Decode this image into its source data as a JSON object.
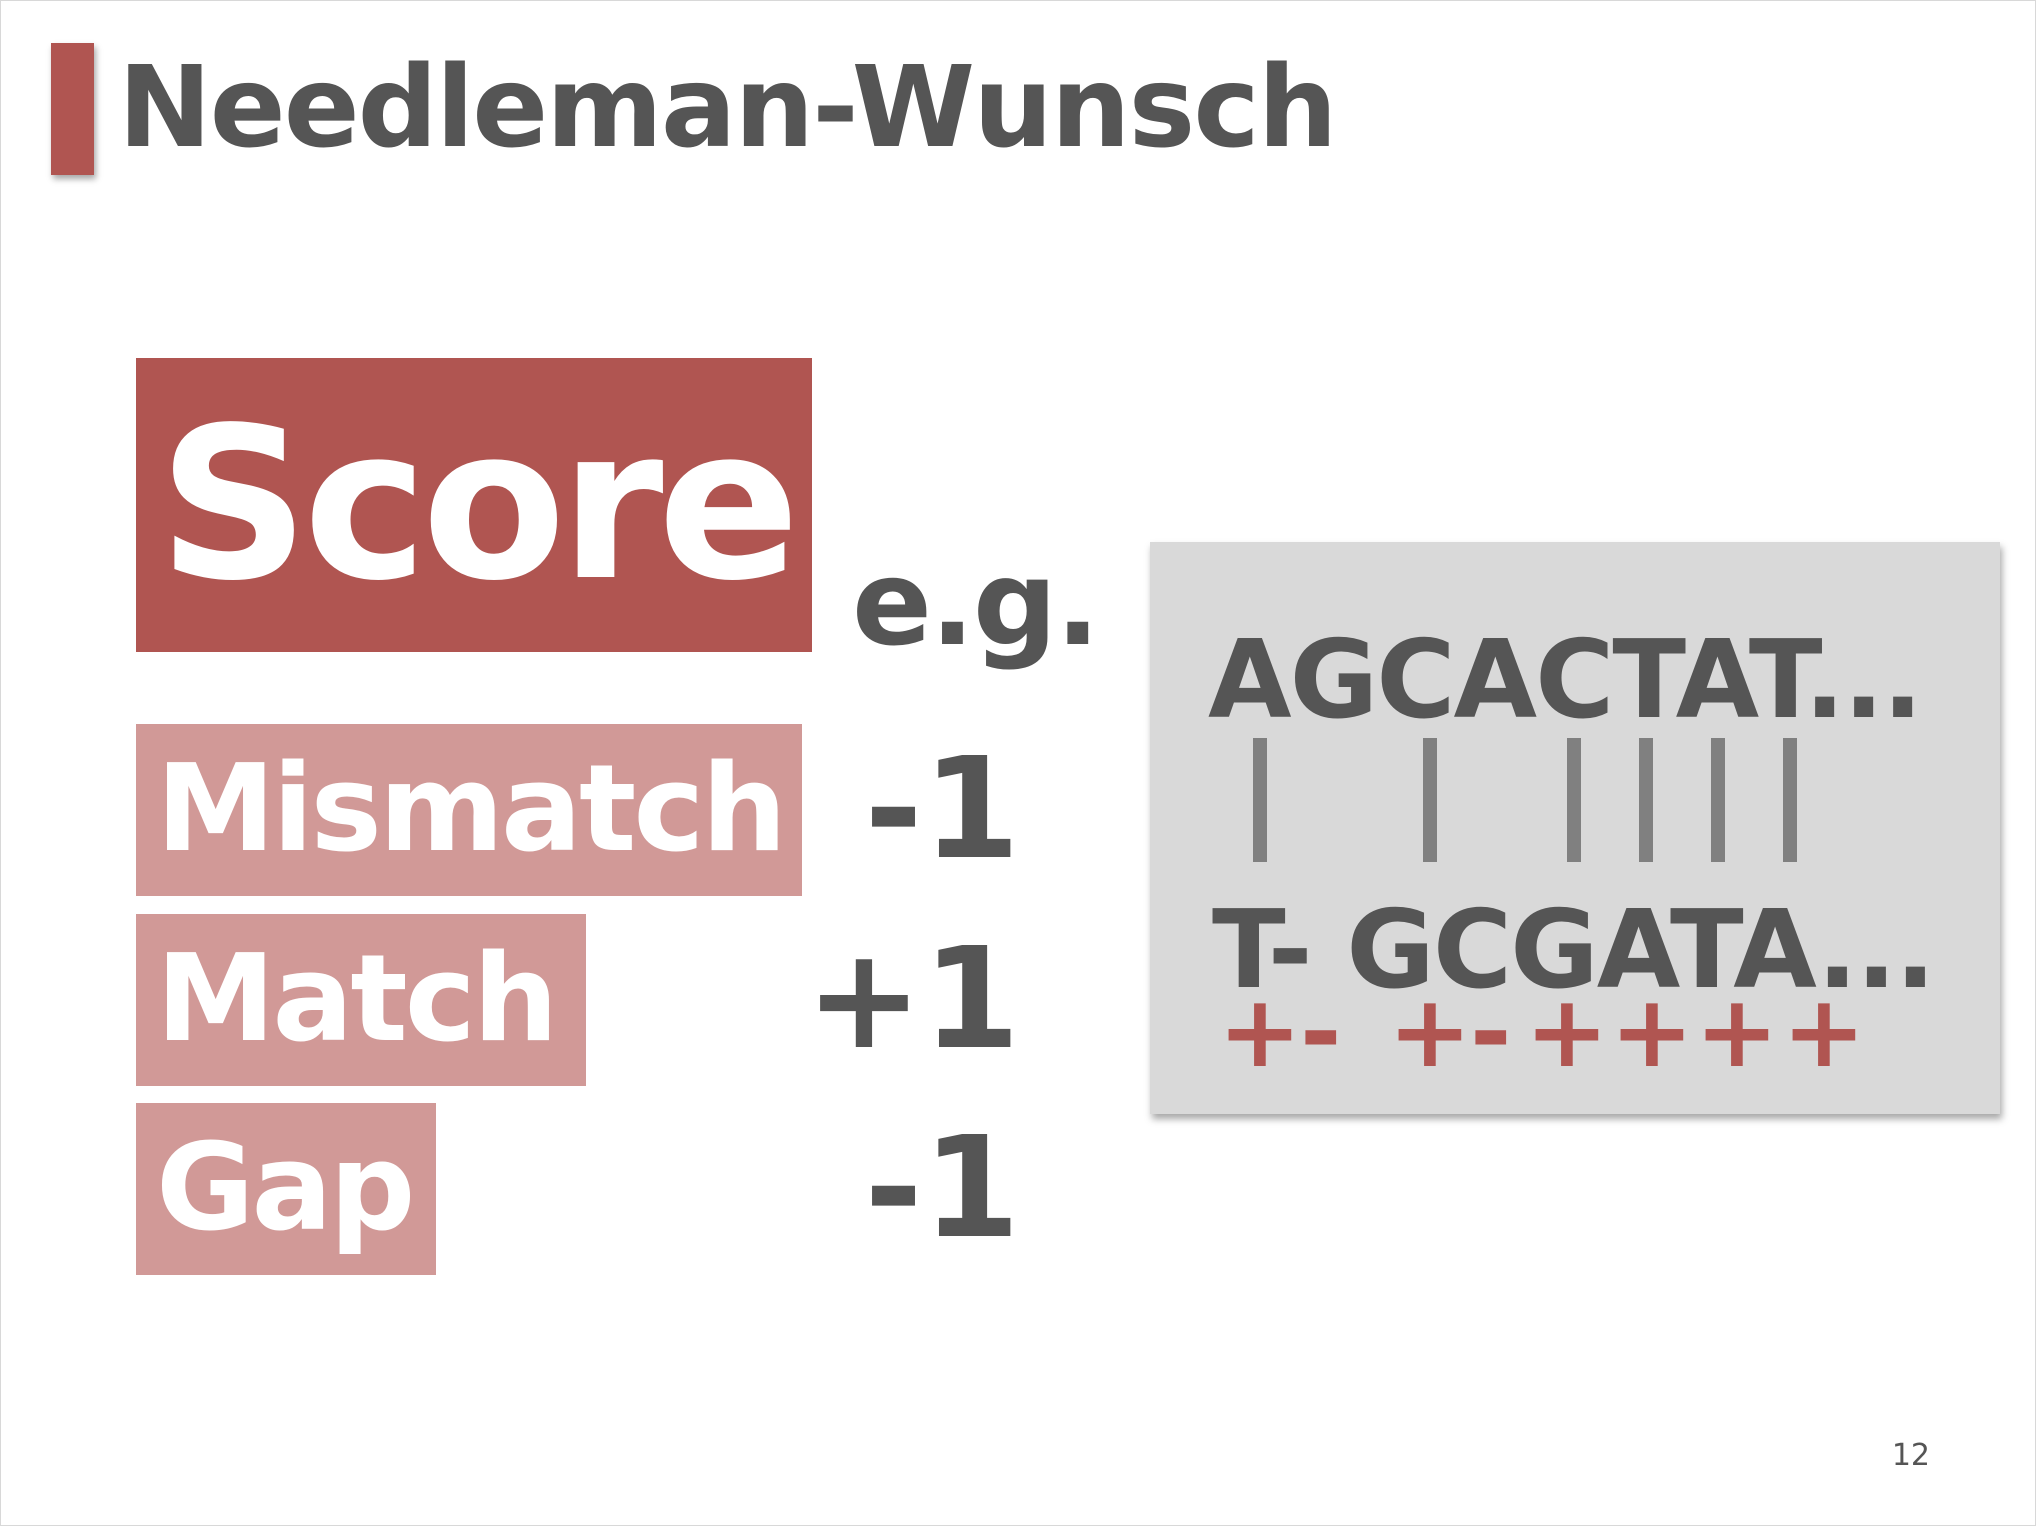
{
  "slide": {
    "title": "Needleman-Wunsch",
    "page_number": "12",
    "colors": {
      "accent": "#b05551",
      "accent_light": "#d19997",
      "text": "#555555",
      "panel": "#d9d9d9",
      "bar": "#808080"
    }
  },
  "score": {
    "heading": "Score",
    "example_label": "e.g.",
    "rules": [
      {
        "label": "Mismatch",
        "value": "-1"
      },
      {
        "label": "Match",
        "value": "+1"
      },
      {
        "label": "Gap",
        "value": "-1"
      }
    ]
  },
  "example": {
    "sequence_top": "AGCACTAT...",
    "sequence_bottom": "T- GCGATA...",
    "signs": [
      "+",
      "-",
      "+",
      "-",
      "+",
      "+",
      "+",
      "+"
    ]
  }
}
